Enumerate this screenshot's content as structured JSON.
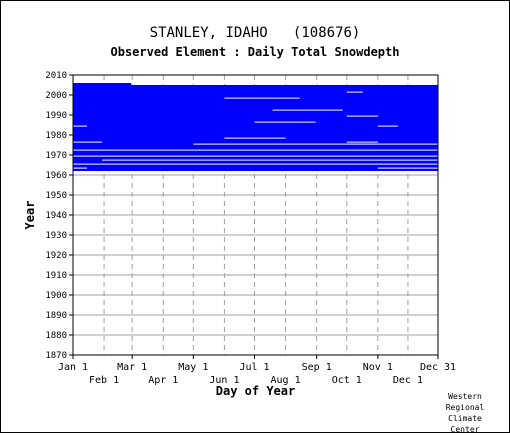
{
  "chart_data": {
    "type": "heatmap",
    "title": "STANLEY, IDAHO   (108676)",
    "subtitle": "Observed Element : Daily Total Snowdepth",
    "xlabel": "Day of Year",
    "ylabel": "Year",
    "x_ticks_top": [
      "Jan 1",
      "Mar 1",
      "May 1",
      "Jul 1",
      "Sep 1",
      "Nov 1",
      "Dec 31"
    ],
    "x_ticks_bottom": [
      "Feb 1",
      "Apr 1",
      "Jun 1",
      "Aug 1",
      "Oct 1",
      "Dec 1"
    ],
    "x_tick_days": [
      1,
      32,
      60,
      91,
      121,
      152,
      182,
      213,
      244,
      274,
      305,
      335,
      365
    ],
    "y_ticks": [
      1870,
      1880,
      1890,
      1900,
      1910,
      1920,
      1930,
      1940,
      1950,
      1960,
      1970,
      1980,
      1990,
      2000,
      2010
    ],
    "ylim": [
      1870,
      2010
    ],
    "xlim": [
      1,
      365
    ],
    "grid": true,
    "data_color": "#0000ff",
    "grid_color": "#a0a0a0",
    "observed_year_range": [
      1962,
      2005
    ],
    "series": [
      {
        "name": "observed",
        "year_start": 1962,
        "year_end": 2004,
        "day_start": 1,
        "day_end": 365
      },
      {
        "name": "observed",
        "year_start": 2005,
        "year_end": 2005,
        "day_start": 1,
        "day_end": 59
      }
    ],
    "gaps": [
      {
        "year": 1998,
        "day_start": 152,
        "day_end": 227
      },
      {
        "year": 1986,
        "day_start": 182,
        "day_end": 243
      },
      {
        "year": 1984,
        "day_start": 1,
        "day_end": 15
      },
      {
        "year": 1984,
        "day_start": 305,
        "day_end": 325
      },
      {
        "year": 1978,
        "day_start": 152,
        "day_end": 213
      },
      {
        "year": 1975,
        "day_start": 121,
        "day_end": 365
      },
      {
        "year": 1972,
        "day_start": 1,
        "day_end": 365
      },
      {
        "year": 1969,
        "day_start": 1,
        "day_end": 365
      },
      {
        "year": 1967,
        "day_start": 30,
        "day_end": 365
      },
      {
        "year": 1965,
        "day_start": 1,
        "day_end": 365
      },
      {
        "year": 1963,
        "day_start": 1,
        "day_end": 15
      },
      {
        "year": 1963,
        "day_start": 305,
        "day_end": 365
      },
      {
        "year": 1989,
        "day_start": 274,
        "day_end": 305
      },
      {
        "year": 1992,
        "day_start": 200,
        "day_end": 270
      },
      {
        "year": 1976,
        "day_start": 1,
        "day_end": 30
      },
      {
        "year": 1976,
        "day_start": 274,
        "day_end": 305
      },
      {
        "year": 2001,
        "day_start": 274,
        "day_end": 290
      }
    ]
  },
  "credit": [
    "Western",
    "Regional",
    "Climate",
    "Center"
  ]
}
